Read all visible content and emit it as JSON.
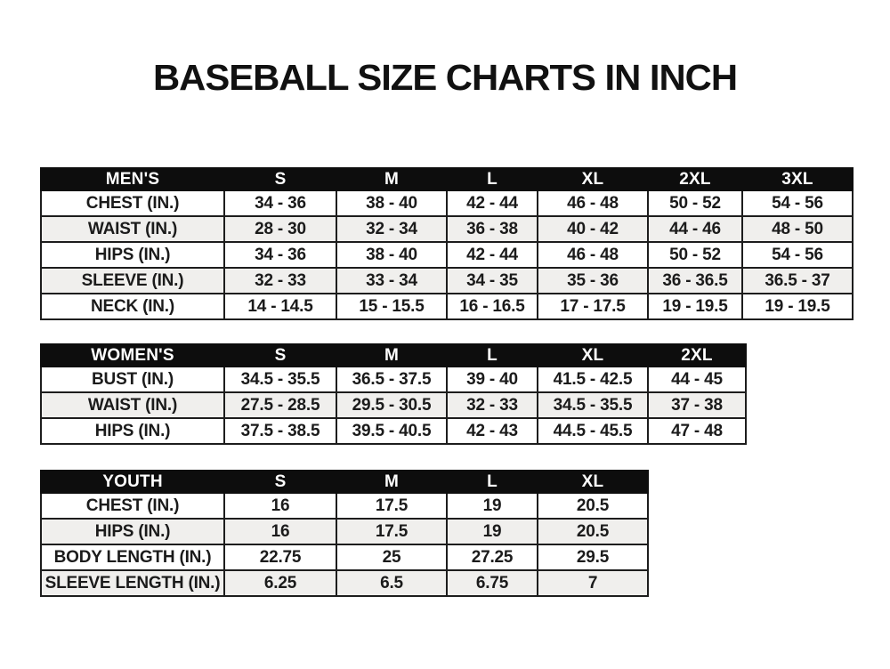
{
  "page": {
    "title": "BASEBALL SIZE CHARTS IN INCH"
  },
  "colors": {
    "page_bg": "#ffffff",
    "header_bg": "#0d0d0d",
    "header_text": "#ffffff",
    "body_text": "#1b1b1b",
    "alt_row_bg": "#f0efed",
    "border": "#1d1d1d"
  },
  "chart_data": [
    {
      "type": "table",
      "id": "mens",
      "columns": [
        "MEN'S",
        "S",
        "M",
        "L",
        "XL",
        "2XL",
        "3XL"
      ],
      "rows": [
        [
          "CHEST (IN.)",
          "34 - 36",
          "38 - 40",
          "42 - 44",
          "46 - 48",
          "50 - 52",
          "54 - 56"
        ],
        [
          "WAIST (IN.)",
          "28 - 30",
          "32 - 34",
          "36 - 38",
          "40 - 42",
          "44 - 46",
          "48 - 50"
        ],
        [
          "HIPS (IN.)",
          "34 - 36",
          "38 - 40",
          "42 - 44",
          "46 - 48",
          "50 - 52",
          "54 - 56"
        ],
        [
          "SLEEVE (IN.)",
          "32 - 33",
          "33 - 34",
          "34 - 35",
          "35 - 36",
          "36 - 36.5",
          "36.5 - 37"
        ],
        [
          "NECK (IN.)",
          "14 - 14.5",
          "15 - 15.5",
          "16 - 16.5",
          "17 - 17.5",
          "19 - 19.5",
          "19 - 19.5"
        ]
      ]
    },
    {
      "type": "table",
      "id": "womens",
      "columns": [
        "WOMEN'S",
        "S",
        "M",
        "L",
        "XL",
        "2XL"
      ],
      "rows": [
        [
          "BUST (IN.)",
          "34.5 - 35.5",
          "36.5 - 37.5",
          "39 - 40",
          "41.5 - 42.5",
          "44 - 45"
        ],
        [
          "WAIST (IN.)",
          "27.5 - 28.5",
          "29.5 - 30.5",
          "32 - 33",
          "34.5 - 35.5",
          "37 - 38"
        ],
        [
          "HIPS (IN.)",
          "37.5 - 38.5",
          "39.5 - 40.5",
          "42 - 43",
          "44.5 - 45.5",
          "47 - 48"
        ]
      ]
    },
    {
      "type": "table",
      "id": "youth",
      "columns": [
        "YOUTH",
        "S",
        "M",
        "L",
        "XL"
      ],
      "rows": [
        [
          "CHEST (IN.)",
          "16",
          "17.5",
          "19",
          "20.5"
        ],
        [
          "HIPS (IN.)",
          "16",
          "17.5",
          "19",
          "20.5"
        ],
        [
          "BODY LENGTH (IN.)",
          "22.75",
          "25",
          "27.25",
          "29.5"
        ],
        [
          "SLEEVE LENGTH (IN.)",
          "6.25",
          "6.5",
          "6.75",
          "7"
        ]
      ]
    }
  ]
}
